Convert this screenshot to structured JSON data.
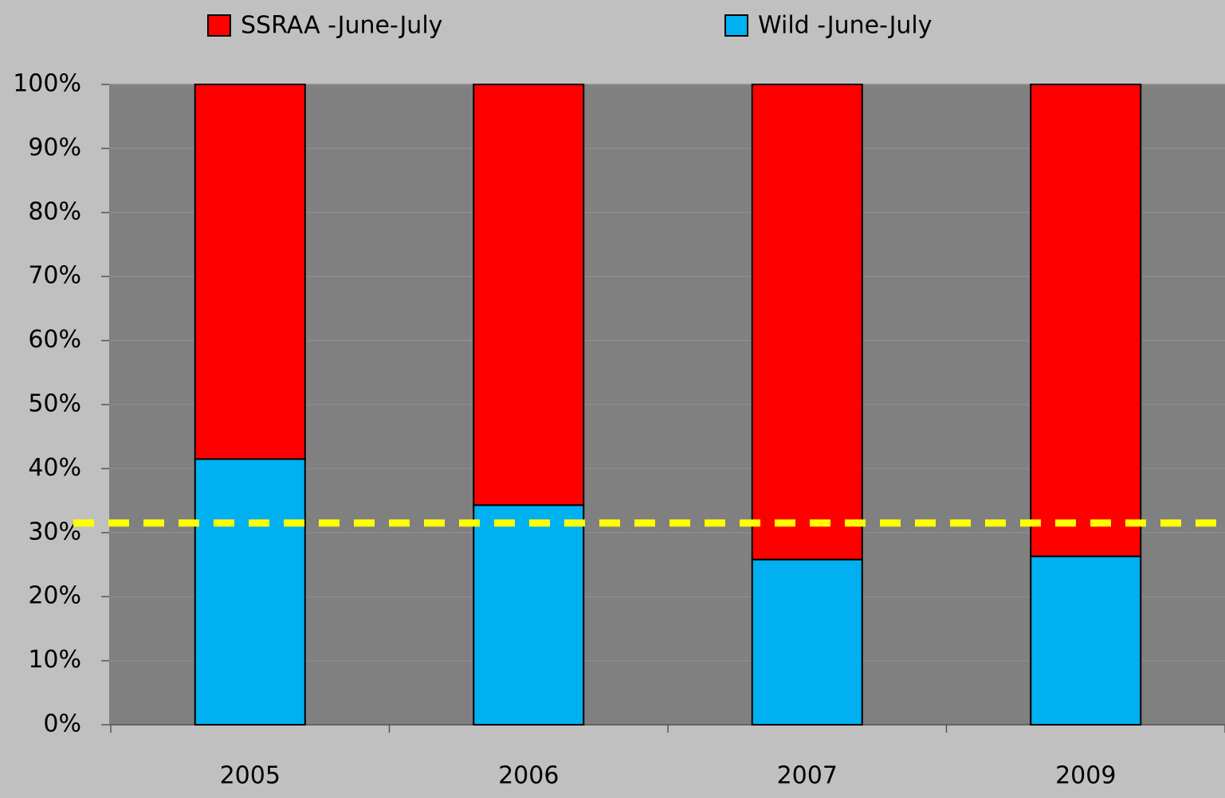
{
  "chart_data": {
    "type": "stacked_bar",
    "categories": [
      "2005",
      "2006",
      "2007",
      "2009"
    ],
    "series": [
      {
        "name": "SSRAA -June-July",
        "color": "#ff0000",
        "values": [
          58.5,
          65.7,
          74.2,
          73.7
        ]
      },
      {
        "name": "Wild -June-July",
        "color": "#00b0f0",
        "values": [
          41.5,
          34.3,
          25.8,
          26.3
        ]
      }
    ],
    "ylim": [
      0,
      100
    ],
    "yticks": [
      {
        "value": 0,
        "label": "0%"
      },
      {
        "value": 10,
        "label": "10%"
      },
      {
        "value": 20,
        "label": "20%"
      },
      {
        "value": 30,
        "label": "30%"
      },
      {
        "value": 40,
        "label": "40%"
      },
      {
        "value": 50,
        "label": "50%"
      },
      {
        "value": 60,
        "label": "60%"
      },
      {
        "value": 70,
        "label": "70%"
      },
      {
        "value": 80,
        "label": "80%"
      },
      {
        "value": 90,
        "label": "90%"
      },
      {
        "value": 100,
        "label": "100%"
      }
    ],
    "grid": true,
    "legend": "top",
    "reference_line": {
      "value": 31.5,
      "color": "#ffff00"
    }
  }
}
